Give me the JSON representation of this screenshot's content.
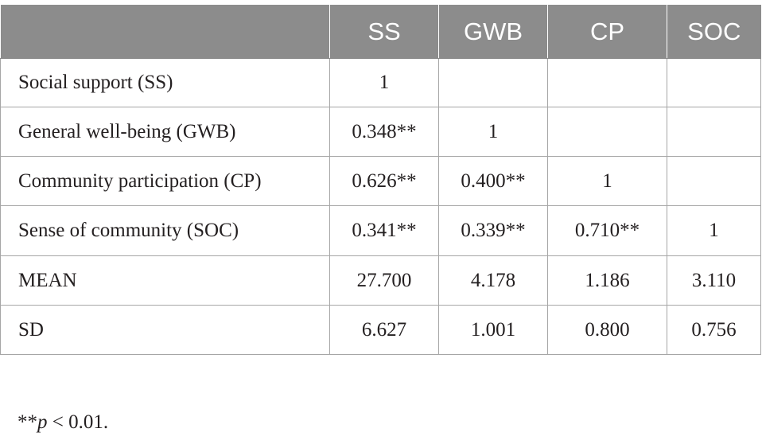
{
  "table": {
    "headers": [
      "",
      "SS",
      "GWB",
      "CP",
      "SOC"
    ],
    "rows": [
      {
        "label": "Social support (SS)",
        "cells": [
          "1",
          "",
          "",
          ""
        ]
      },
      {
        "label": "General well-being (GWB)",
        "cells": [
          "0.348**",
          "1",
          "",
          ""
        ]
      },
      {
        "label": "Community participation (CP)",
        "cells": [
          "0.626**",
          "0.400**",
          "1",
          ""
        ]
      },
      {
        "label": "Sense of community (SOC)",
        "cells": [
          "0.341**",
          "0.339**",
          "0.710**",
          "1"
        ]
      },
      {
        "label": "MEAN",
        "cells": [
          "27.700",
          "4.178",
          "1.186",
          "3.110"
        ]
      },
      {
        "label": "SD",
        "cells": [
          "6.627",
          "1.001",
          "0.800",
          "0.756"
        ]
      }
    ]
  },
  "footnote": {
    "prefix": "**",
    "italic": "p",
    "suffix": " < 0.01."
  },
  "colors": {
    "header_bg": "#8c8c8c",
    "header_text": "#ffffff",
    "grid": "#a6a6a6",
    "body_text": "#231f20"
  }
}
